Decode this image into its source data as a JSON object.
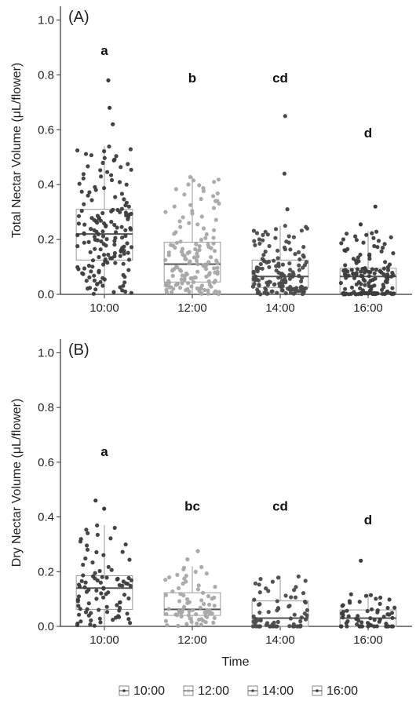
{
  "chart_data": {
    "type": "box-strip",
    "xlabel": "Time",
    "categories": [
      "10:00",
      "12:00",
      "14:00",
      "16:00"
    ],
    "colors": {
      "10:00": "#3c3c3c",
      "12:00": "#a8a8a8",
      "14:00": "#4a4a4a",
      "16:00": "#3c3c3c"
    },
    "legend": {
      "position": "bottom",
      "entries": [
        "10:00",
        "12:00",
        "14:00",
        "16:00"
      ]
    },
    "panels": [
      {
        "tag": "(A)",
        "ylabel": "Total Nectar Volume (μL/flower)",
        "ylim": [
          0,
          1.05
        ],
        "yticks": [
          0.0,
          0.2,
          0.4,
          0.6,
          0.8,
          1.0
        ],
        "ytick_labels": [
          "0.0",
          "0.2",
          "0.4",
          "0.6",
          "0.8",
          "1.0"
        ],
        "letters": [
          "a",
          "b",
          "cd",
          "d"
        ],
        "letter_y": [
          0.89,
          0.79,
          0.79,
          0.59
        ],
        "boxes": [
          {
            "category": "10:00",
            "min": 0.0,
            "q1": 0.125,
            "median": 0.22,
            "q3": 0.31,
            "max": 0.54,
            "outliers": [
              0.62,
              0.68,
              0.78
            ],
            "n": 160
          },
          {
            "category": "12:00",
            "min": 0.0,
            "q1": 0.045,
            "median": 0.11,
            "q3": 0.19,
            "max": 0.43,
            "outliers": [],
            "n": 150
          },
          {
            "category": "14:00",
            "min": 0.0,
            "q1": 0.025,
            "median": 0.065,
            "q3": 0.125,
            "max": 0.25,
            "outliers": [
              0.31,
              0.44,
              0.65
            ],
            "n": 140
          },
          {
            "category": "16:00",
            "min": 0.0,
            "q1": 0.005,
            "median": 0.065,
            "q3": 0.095,
            "max": 0.23,
            "outliers": [
              0.255,
              0.32
            ],
            "n": 140
          }
        ]
      },
      {
        "tag": "(B)",
        "ylabel": "Dry Nectar Volume (μL/flower)",
        "ylim": [
          0,
          1.05
        ],
        "yticks": [
          0.0,
          0.2,
          0.4,
          0.6,
          0.8,
          1.0
        ],
        "ytick_labels": [
          "0.0",
          "0.2",
          "0.4",
          "0.6",
          "0.8",
          "1.0"
        ],
        "letters": [
          "a",
          "bc",
          "cd",
          "d"
        ],
        "letter_y": [
          0.64,
          0.44,
          0.44,
          0.39
        ],
        "boxes": [
          {
            "category": "10:00",
            "min": 0.0,
            "q1": 0.062,
            "median": 0.14,
            "q3": 0.185,
            "max": 0.37,
            "outliers": [
              0.43,
              0.46
            ],
            "n": 90
          },
          {
            "category": "12:00",
            "min": 0.0,
            "q1": 0.04,
            "median": 0.062,
            "q3": 0.123,
            "max": 0.22,
            "outliers": [
              0.245,
              0.275
            ],
            "n": 70
          },
          {
            "category": "14:00",
            "min": 0.0,
            "q1": 0.0,
            "median": 0.03,
            "q3": 0.093,
            "max": 0.185,
            "outliers": [],
            "n": 70
          },
          {
            "category": "16:00",
            "min": 0.0,
            "q1": 0.0,
            "median": 0.03,
            "q3": 0.06,
            "max": 0.12,
            "outliers": [
              0.24
            ],
            "n": 60
          }
        ]
      }
    ]
  }
}
